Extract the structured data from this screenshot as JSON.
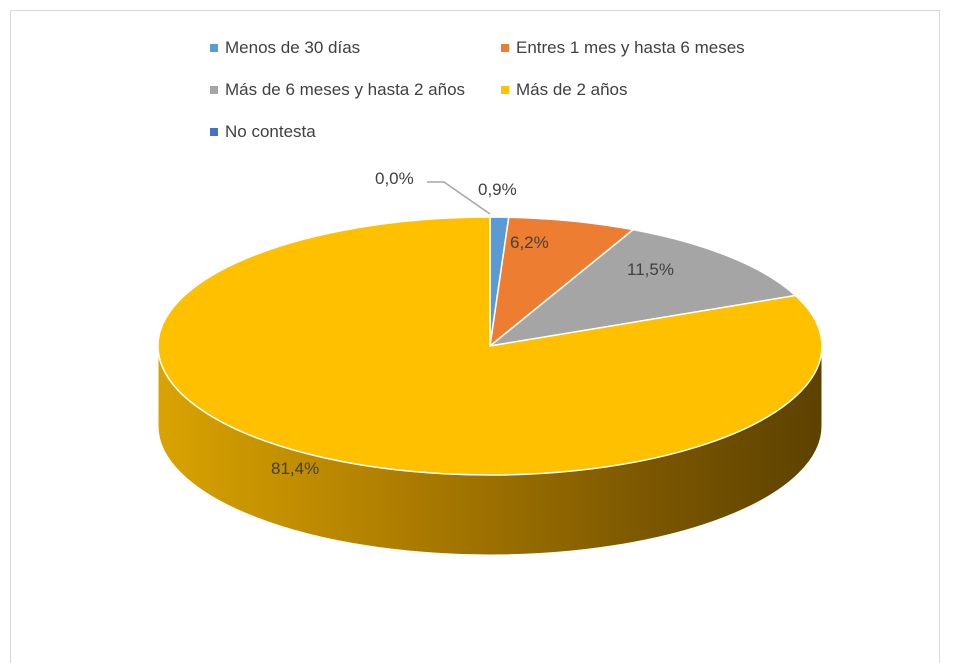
{
  "chart_data": {
    "type": "pie",
    "title": "",
    "legend_position": "top",
    "three_d": true,
    "categories": [
      "Menos de 30 días",
      "Entres 1 mes y hasta 6 meses",
      "Más de 6 meses y hasta 2 años",
      "Más de 2 años",
      "No contesta"
    ],
    "values": [
      0.9,
      6.2,
      11.5,
      81.4,
      0.0
    ],
    "labels": [
      "0,9%",
      "6,2%",
      "11,5%",
      "81,4%",
      "0,0%"
    ],
    "colors": [
      "#5b9bd5",
      "#ed7d31",
      "#a5a5a5",
      "#ffc000",
      "#4472c4"
    ]
  }
}
